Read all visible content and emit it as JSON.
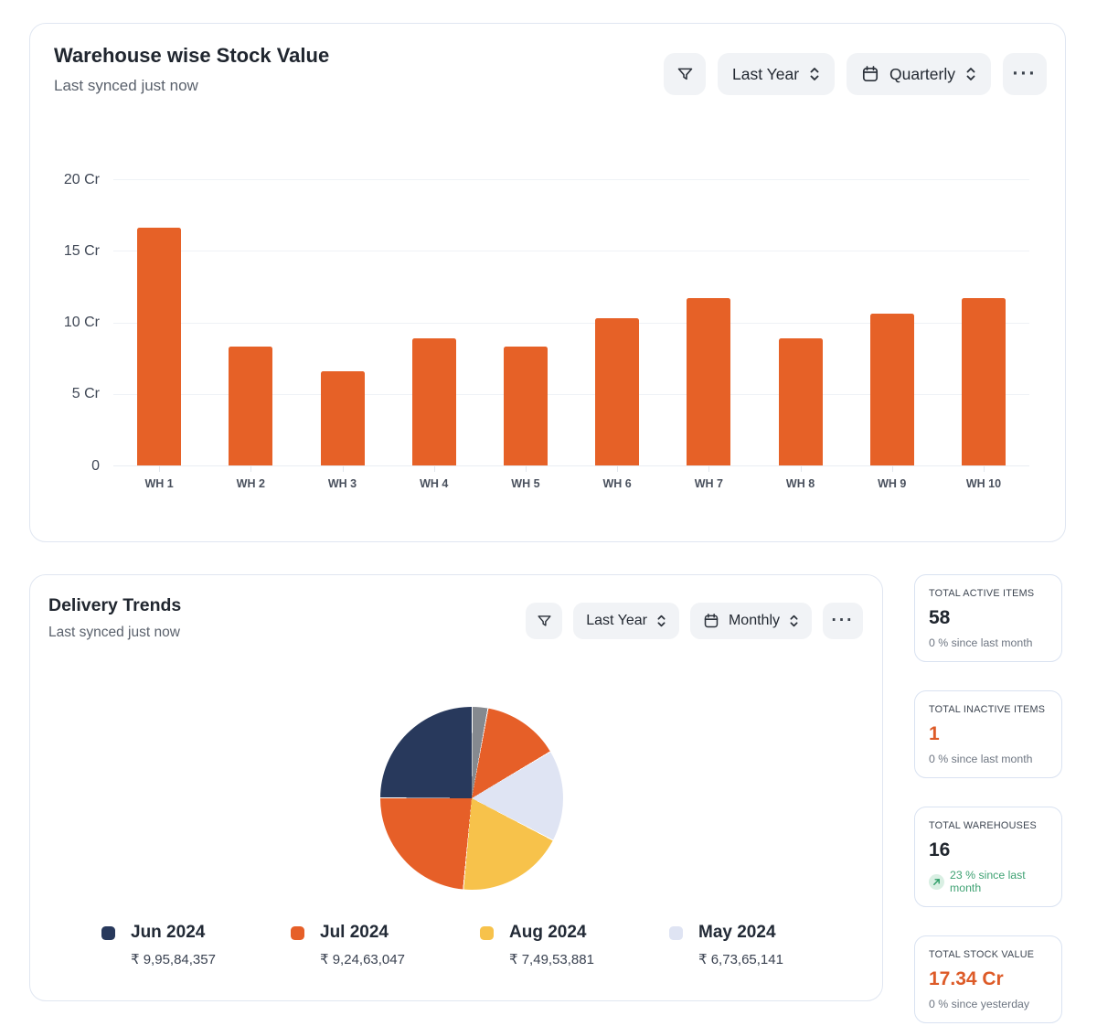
{
  "stock_card": {
    "title": "Warehouse wise Stock Value",
    "subtitle": "Last synced just now",
    "controls": {
      "range_label": "Last Year",
      "interval_label": "Quarterly",
      "menu_label": "···"
    },
    "chart_data": {
      "type": "bar",
      "title": "Warehouse wise Stock Value",
      "categories": [
        "WH 1",
        "WH 2",
        "WH 3",
        "WH 4",
        "WH 5",
        "WH 6",
        "WH 7",
        "WH 8",
        "WH 9",
        "WH 10"
      ],
      "values": [
        16.6,
        8.3,
        6.6,
        8.9,
        8.3,
        10.3,
        11.7,
        8.9,
        10.6,
        11.7
      ],
      "unit": "Cr",
      "ylim": [
        0,
        20
      ],
      "yticks": [
        "20 Cr",
        "15 Cr",
        "10 Cr",
        "5 Cr",
        "0"
      ],
      "grid": true,
      "bar_color": "#e66127",
      "legend_position": "none"
    }
  },
  "delivery_card": {
    "title": "Delivery Trends",
    "subtitle": "Last synced just now",
    "controls": {
      "range_label": "Last Year",
      "interval_label": "Monthly",
      "menu_label": "···"
    },
    "chart_data": {
      "type": "pie",
      "title": "Delivery Trends",
      "legend_position": "bottom",
      "series": [
        {
          "name": "Jun 2024",
          "value": 99584357,
          "value_label": "₹ 9,95,84,357",
          "color": "#28395c"
        },
        {
          "name": "Jul 2024",
          "value": 92463047,
          "value_label": "₹ 9,24,63,047",
          "color": "#e65f28"
        },
        {
          "name": "Aug 2024",
          "value": 74953881,
          "value_label": "₹ 7,49,53,881",
          "color": "#f7c24b"
        },
        {
          "name": "May 2024",
          "value": 67365141,
          "value_label": "₹ 6,73,65,141",
          "color": "#dfe4f3"
        }
      ],
      "segments": [
        {
          "color": "#85898f",
          "start_deg": 0,
          "end_deg": 10
        },
        {
          "color": "#e65f28",
          "start_deg": 10,
          "end_deg": 59
        },
        {
          "color": "#dfe4f3",
          "start_deg": 59,
          "end_deg": 117
        },
        {
          "color": "#f7c24b",
          "start_deg": 117,
          "end_deg": 185
        },
        {
          "color": "#e65f28",
          "start_deg": 185,
          "end_deg": 270
        },
        {
          "color": "#28395c",
          "start_deg": 270,
          "end_deg": 360
        }
      ]
    }
  },
  "stat_cards": [
    {
      "label": "TOTAL ACTIVE ITEMS",
      "value": "58",
      "value_color": "#20262e",
      "delta_text": "0 % since last month",
      "delta_type": "neutral"
    },
    {
      "label": "TOTAL INACTIVE ITEMS",
      "value": "1",
      "value_color": "#dd5b28",
      "delta_text": "0 % since last month",
      "delta_type": "neutral"
    },
    {
      "label": "TOTAL WAREHOUSES",
      "value": "16",
      "value_color": "#20262e",
      "delta_text": "23 % since last month",
      "delta_type": "positive"
    },
    {
      "label": "TOTAL STOCK VALUE",
      "value": "17.34 Cr",
      "value_color": "#dd5b28",
      "delta_text": "0 % since yesterday",
      "delta_type": "neutral"
    }
  ],
  "colors": {
    "accent_orange": "#e66127",
    "navy": "#28395c",
    "yellow": "#f7c24b",
    "lavender": "#dfe4f3",
    "gray_slice": "#85898f",
    "positive_green": "#3fa273",
    "card_border": "#e0e6f1"
  }
}
